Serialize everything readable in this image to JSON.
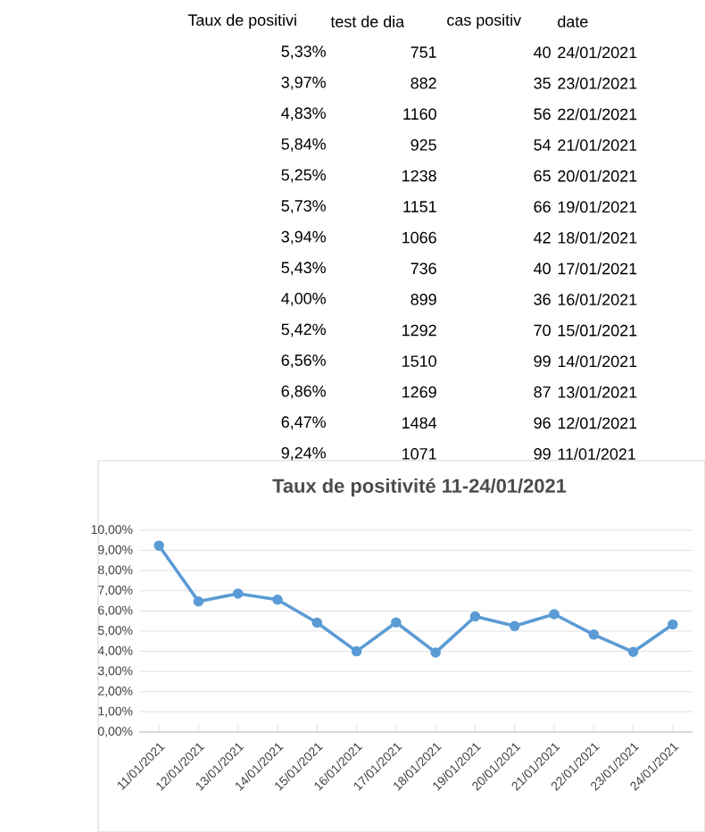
{
  "chart_data": [
    {
      "type": "other",
      "annotations": [
        "Taux de positivi",
        "test de dia",
        "cas positiv",
        "date",
        "5,33%",
        "751",
        "40",
        "24/01/2021",
        "3,97%",
        "882",
        "35",
        "23/01/2021",
        "4,83%",
        "1160",
        "56",
        "22/01/2021",
        "5,84%",
        "925",
        "54",
        "21/01/2021",
        "5,25%",
        "1238",
        "65",
        "20/01/2021",
        "5,73%",
        "1151",
        "66",
        "19/01/2021",
        "3,94%",
        "1066",
        "42",
        "18/01/2021",
        "5,43%",
        "736",
        "40",
        "17/01/2021",
        "4,00%",
        "899",
        "36",
        "16/01/2021",
        "5,42%",
        "1292",
        "70",
        "15/01/2021",
        "6,56%",
        "1510",
        "99",
        "14/01/2021",
        "6,86%",
        "1269",
        "87",
        "13/01/2021",
        "6,47%",
        "1484",
        "96",
        "12/01/2021",
        "9,24%",
        "1071",
        "99",
        "11/01/2021"
      ]
    },
    {
      "type": "line",
      "title": "Taux de positivité 11-24/01/2021",
      "categories": [
        "11/01/2021",
        "12/01/2021",
        "13/01/2021",
        "14/01/2021",
        "15/01/2021",
        "16/01/2021",
        "17/01/2021",
        "18/01/2021",
        "19/01/2021",
        "20/01/2021",
        "21/01/2021",
        "22/01/2021",
        "23/01/2021",
        "24/01/2021"
      ],
      "values": [
        9.24,
        6.47,
        6.86,
        6.56,
        5.42,
        4.0,
        5.43,
        3.94,
        5.73,
        5.25,
        5.84,
        4.83,
        3.97,
        5.33
      ],
      "color": "#5b9bd5",
      "marker": "circle",
      "grid": "y",
      "ylim": [
        0,
        10
      ],
      "yticks": [
        {
          "value": 0,
          "label": "0,00%"
        },
        {
          "value": 1,
          "label": "1,00%"
        },
        {
          "value": 2,
          "label": "2,00%"
        },
        {
          "value": 3,
          "label": "3,00%"
        },
        {
          "value": 4,
          "label": "4,00%"
        },
        {
          "value": 5,
          "label": "5,00%"
        },
        {
          "value": 6,
          "label": "6,00%"
        },
        {
          "value": 7,
          "label": "7,00%"
        },
        {
          "value": 8,
          "label": "8,00%"
        },
        {
          "value": 9,
          "label": "9,00%"
        },
        {
          "value": 10,
          "label": "10,00%"
        }
      ]
    }
  ]
}
